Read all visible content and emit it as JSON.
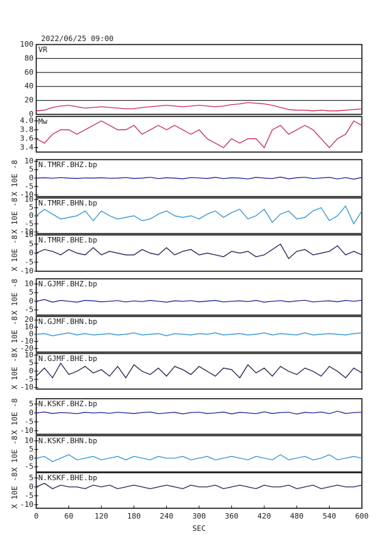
{
  "chart_data": [
    {
      "type": "line",
      "title": "2022/06/25 09:00",
      "xlim": [
        0,
        600
      ],
      "ylim": [
        0,
        100
      ],
      "yticks": [
        0,
        20,
        40,
        60,
        80,
        100
      ],
      "grid": true,
      "x": [
        0,
        15,
        30,
        45,
        60,
        75,
        90,
        105,
        120,
        135,
        150,
        165,
        180,
        195,
        210,
        225,
        240,
        255,
        270,
        285,
        300,
        315,
        330,
        345,
        360,
        375,
        390,
        405,
        420,
        435,
        450,
        465,
        480,
        495,
        510,
        525,
        540,
        555,
        570,
        585,
        600
      ],
      "series": [
        {
          "name": "VR",
          "color": "#cc1f4a",
          "values": [
            5,
            6,
            10,
            12,
            13,
            11,
            9,
            10,
            11,
            10,
            9,
            8,
            8,
            10,
            11,
            12,
            13,
            12,
            11,
            12,
            13,
            12,
            11,
            12,
            14,
            15,
            17,
            16,
            15,
            13,
            10,
            7,
            6,
            6,
            5,
            6,
            5,
            5,
            6,
            7,
            8
          ]
        }
      ]
    },
    {
      "type": "line",
      "xlim": [
        0,
        600
      ],
      "ylim": [
        3.3,
        4.1
      ],
      "yticks": [
        3.4,
        3.6,
        3.8,
        {
          "value": 4,
          "label": "4.0"
        }
      ],
      "x": [
        0,
        15,
        30,
        45,
        60,
        75,
        90,
        105,
        120,
        135,
        150,
        165,
        180,
        195,
        210,
        225,
        240,
        255,
        270,
        285,
        300,
        315,
        330,
        345,
        360,
        375,
        390,
        405,
        420,
        435,
        450,
        465,
        480,
        495,
        510,
        525,
        540,
        555,
        570,
        585,
        600
      ],
      "series": [
        {
          "name": "Mw",
          "color": "#cc1f4a",
          "values": [
            3.6,
            3.5,
            3.7,
            3.8,
            3.8,
            3.7,
            3.8,
            3.9,
            4.0,
            3.9,
            3.8,
            3.8,
            3.9,
            3.7,
            3.8,
            3.9,
            3.8,
            3.9,
            3.8,
            3.7,
            3.8,
            3.6,
            3.5,
            3.4,
            3.6,
            3.5,
            3.6,
            3.6,
            3.4,
            3.8,
            3.9,
            3.7,
            3.8,
            3.9,
            3.8,
            3.6,
            3.4,
            3.6,
            3.7,
            4.0,
            3.9
          ]
        }
      ]
    },
    {
      "type": "line",
      "ylabel": "X 10E -8",
      "xlim": [
        0,
        600
      ],
      "ylim": [
        -11,
        11
      ],
      "yticks": [
        -10,
        -5,
        0,
        5,
        10
      ],
      "x": [
        0,
        15,
        30,
        45,
        60,
        75,
        90,
        105,
        120,
        135,
        150,
        165,
        180,
        195,
        210,
        225,
        240,
        255,
        270,
        285,
        300,
        315,
        330,
        345,
        360,
        375,
        390,
        405,
        420,
        435,
        450,
        465,
        480,
        495,
        510,
        525,
        540,
        555,
        570,
        585,
        600
      ],
      "series": [
        {
          "name": "N.TMRF.BHZ.bp",
          "color": "#1c1c9a",
          "values": [
            0,
            0.2,
            -0.1,
            0.3,
            0,
            -0.2,
            0.1,
            0,
            0.2,
            -0.1,
            0,
            0.3,
            -0.2,
            0,
            0.5,
            -0.3,
            0.2,
            0,
            -0.4,
            0.3,
            0.1,
            -0.2,
            0.4,
            -0.3,
            0.2,
            0,
            -0.5,
            0.4,
            0,
            -0.3,
            0.6,
            -0.4,
            0.2,
            0.5,
            -0.3,
            0.1,
            0.4,
            -0.5,
            0.3,
            -0.6,
            0.4
          ]
        }
      ]
    },
    {
      "type": "line",
      "ylabel": "X 10E -8",
      "xlim": [
        0,
        600
      ],
      "ylim": [
        -11,
        11
      ],
      "yticks": [
        -10,
        -5,
        0,
        5,
        10
      ],
      "x": [
        0,
        15,
        30,
        45,
        60,
        75,
        90,
        105,
        120,
        135,
        150,
        165,
        180,
        195,
        210,
        225,
        240,
        255,
        270,
        285,
        300,
        315,
        330,
        345,
        360,
        375,
        390,
        405,
        420,
        435,
        450,
        465,
        480,
        495,
        510,
        525,
        540,
        555,
        570,
        585,
        600
      ],
      "series": [
        {
          "name": "N.TMRF.BHN.bp",
          "color": "#2a90d2",
          "values": [
            0,
            4,
            1,
            -2,
            -1,
            0,
            3,
            -3,
            3,
            0,
            -2,
            -1,
            0,
            -3,
            -2,
            1,
            3,
            0,
            -1,
            0,
            -2,
            1,
            3,
            -1,
            2,
            4,
            -2,
            0,
            4,
            -4,
            1,
            3,
            -2,
            -1,
            3,
            5,
            -3,
            0,
            6,
            -5,
            3
          ]
        }
      ]
    },
    {
      "type": "line",
      "ylabel": "X 10E -8",
      "xlim": [
        0,
        600
      ],
      "ylim": [
        -10,
        10
      ],
      "yticks": [
        -10,
        -5,
        0,
        5,
        10
      ],
      "x": [
        0,
        15,
        30,
        45,
        60,
        75,
        90,
        105,
        120,
        135,
        150,
        165,
        180,
        195,
        210,
        225,
        240,
        255,
        270,
        285,
        300,
        315,
        330,
        345,
        360,
        375,
        390,
        405,
        420,
        435,
        450,
        465,
        480,
        495,
        510,
        525,
        540,
        555,
        570,
        585,
        600
      ],
      "series": [
        {
          "name": "N.TMRF.BHE.bp",
          "color": "#1a1a52",
          "values": [
            0,
            2,
            1,
            -1,
            2,
            0,
            -1,
            3,
            -1,
            1,
            0,
            -1,
            -1,
            2,
            0,
            -1,
            3,
            -1,
            1,
            2,
            -1,
            0,
            -1,
            -2,
            1,
            0,
            1,
            -2,
            -1,
            2,
            5,
            -3,
            1,
            2,
            -1,
            0,
            1,
            4,
            -1,
            1,
            -1
          ]
        }
      ]
    },
    {
      "type": "line",
      "ylabel": "X 10E -8",
      "xlim": [
        0,
        600
      ],
      "ylim": [
        -8,
        13
      ],
      "yticks": [
        -5,
        0,
        5,
        10
      ],
      "x": [
        0,
        15,
        30,
        45,
        60,
        75,
        90,
        105,
        120,
        135,
        150,
        165,
        180,
        195,
        210,
        225,
        240,
        255,
        270,
        285,
        300,
        315,
        330,
        345,
        360,
        375,
        390,
        405,
        420,
        435,
        450,
        465,
        480,
        495,
        510,
        525,
        540,
        555,
        570,
        585,
        600
      ],
      "series": [
        {
          "name": "N.GJMF.BHZ.bp",
          "color": "#1c1c9a",
          "values": [
            0,
            1,
            -0.5,
            0.5,
            0,
            -0.5,
            0.5,
            0.3,
            -0.3,
            0,
            0.4,
            -0.4,
            0.2,
            -0.2,
            0.5,
            0,
            -0.5,
            0.3,
            0,
            0.4,
            -0.3,
            0.1,
            0.5,
            -0.4,
            0,
            0.3,
            -0.2,
            0.5,
            -0.5,
            0,
            0.4,
            -0.3,
            0.2,
            0.6,
            -0.4,
            0,
            0.3,
            -0.3,
            0.5,
            0,
            0.6
          ]
        }
      ]
    },
    {
      "type": "line",
      "ylabel": "X 10E -8",
      "xlim": [
        0,
        600
      ],
      "ylim": [
        -25,
        25
      ],
      "yticks": [
        -20,
        -10,
        0,
        10,
        20
      ],
      "x": [
        0,
        15,
        30,
        45,
        60,
        75,
        90,
        105,
        120,
        135,
        150,
        165,
        180,
        195,
        210,
        225,
        240,
        255,
        270,
        285,
        300,
        315,
        330,
        345,
        360,
        375,
        390,
        405,
        420,
        435,
        450,
        465,
        480,
        495,
        510,
        525,
        540,
        555,
        570,
        585,
        600
      ],
      "series": [
        {
          "name": "N.GJMF.BHN.bp",
          "color": "#2a90d2",
          "values": [
            0,
            1,
            -2,
            0,
            2,
            -1,
            1,
            -1,
            0,
            1,
            -1,
            0,
            2,
            -1,
            0,
            1,
            -2,
            1,
            0,
            -1,
            1,
            0,
            2,
            -1,
            0,
            1,
            -1,
            0,
            2,
            -1,
            1,
            0,
            -1,
            2,
            -1,
            0,
            1,
            0,
            -1,
            1,
            2
          ]
        }
      ]
    },
    {
      "type": "line",
      "ylabel": "X 10E -8",
      "xlim": [
        0,
        600
      ],
      "ylim": [
        -11,
        11
      ],
      "yticks": [
        -10,
        -5,
        0,
        5,
        10
      ],
      "x": [
        0,
        15,
        30,
        45,
        60,
        75,
        90,
        105,
        120,
        135,
        150,
        165,
        180,
        195,
        210,
        225,
        240,
        255,
        270,
        285,
        300,
        315,
        330,
        345,
        360,
        375,
        390,
        405,
        420,
        435,
        450,
        465,
        480,
        495,
        510,
        525,
        540,
        555,
        570,
        585,
        600
      ],
      "series": [
        {
          "name": "N.GJMF.BHE.bp",
          "color": "#1a1a52",
          "values": [
            -3,
            2,
            -4,
            5,
            -2,
            0,
            3,
            -1,
            1,
            -3,
            3,
            -4,
            4,
            0,
            -2,
            2,
            -3,
            3,
            1,
            -2,
            3,
            0,
            -3,
            2,
            1,
            -4,
            4,
            -1,
            2,
            -3,
            3,
            0,
            -2,
            2,
            0,
            -3,
            3,
            0,
            -4,
            2,
            -1
          ]
        }
      ]
    },
    {
      "type": "line",
      "ylabel": "X 10E -8",
      "xlim": [
        0,
        600
      ],
      "ylim": [
        -12,
        8
      ],
      "yticks": [
        -10,
        -5,
        0,
        5
      ],
      "x": [
        0,
        15,
        30,
        45,
        60,
        75,
        90,
        105,
        120,
        135,
        150,
        165,
        180,
        195,
        210,
        225,
        240,
        255,
        270,
        285,
        300,
        315,
        330,
        345,
        360,
        375,
        390,
        405,
        420,
        435,
        450,
        465,
        480,
        495,
        510,
        525,
        540,
        555,
        570,
        585,
        600
      ],
      "series": [
        {
          "name": "N.KSKF.BHZ.bp",
          "color": "#1c1c9a",
          "values": [
            0,
            0.5,
            -0.3,
            0.2,
            0,
            -0.4,
            0.3,
            0,
            0.2,
            -0.2,
            0.4,
            0,
            -0.3,
            0.2,
            0.5,
            -0.4,
            0,
            0.3,
            -0.5,
            0.2,
            0.4,
            -0.3,
            0,
            0.5,
            -0.5,
            0.3,
            0,
            -0.4,
            0.6,
            -0.3,
            0.2,
            0.4,
            -0.6,
            0.3,
            0,
            0.5,
            -0.4,
            1,
            -0.3,
            0.2,
            0.4
          ]
        }
      ]
    },
    {
      "type": "line",
      "ylabel": "X 10E -8",
      "xlim": [
        0,
        600
      ],
      "ylim": [
        -8,
        13
      ],
      "yticks": [
        -5,
        0,
        5,
        10
      ],
      "x": [
        0,
        15,
        30,
        45,
        60,
        75,
        90,
        105,
        120,
        135,
        150,
        165,
        180,
        195,
        210,
        225,
        240,
        255,
        270,
        285,
        300,
        315,
        330,
        345,
        360,
        375,
        390,
        405,
        420,
        435,
        450,
        465,
        480,
        495,
        510,
        525,
        540,
        555,
        570,
        585,
        600
      ],
      "series": [
        {
          "name": "N.KSKF.BHN.bp",
          "color": "#2a90d2",
          "values": [
            0,
            1,
            -2,
            0,
            2,
            -1,
            0,
            1,
            -1,
            0,
            1,
            -1,
            1,
            0,
            -1,
            1,
            0,
            0,
            1,
            -1,
            0,
            1,
            -1,
            0,
            1,
            0,
            -1,
            1,
            0,
            -1,
            2,
            -1,
            0,
            1,
            -1,
            0,
            2,
            -1,
            0,
            1,
            0
          ]
        }
      ]
    },
    {
      "type": "line",
      "ylabel": "X 10E -8",
      "xlabel": "SEC",
      "xlim": [
        0,
        600
      ],
      "ylim": [
        -12,
        8
      ],
      "yticks": [
        -10,
        -5,
        0,
        5
      ],
      "xticks": [
        0,
        60,
        120,
        180,
        240,
        300,
        360,
        420,
        480,
        540,
        600
      ],
      "x": [
        0,
        15,
        30,
        45,
        60,
        75,
        90,
        105,
        120,
        135,
        150,
        165,
        180,
        195,
        210,
        225,
        240,
        255,
        270,
        285,
        300,
        315,
        330,
        345,
        360,
        375,
        390,
        405,
        420,
        435,
        450,
        465,
        480,
        495,
        510,
        525,
        540,
        555,
        570,
        585,
        600
      ],
      "series": [
        {
          "name": "N.KSKF.BHE.bp",
          "color": "#1a1a52",
          "values": [
            0,
            2,
            -1,
            1,
            0,
            0,
            -1,
            1,
            0,
            1,
            -1,
            0,
            1,
            0,
            -1,
            0,
            1,
            0,
            -1,
            1,
            0,
            0,
            1,
            -1,
            0,
            1,
            0,
            -1,
            1,
            0,
            0,
            1,
            -1,
            0,
            1,
            -1,
            0,
            1,
            0,
            0,
            1
          ]
        }
      ]
    }
  ]
}
